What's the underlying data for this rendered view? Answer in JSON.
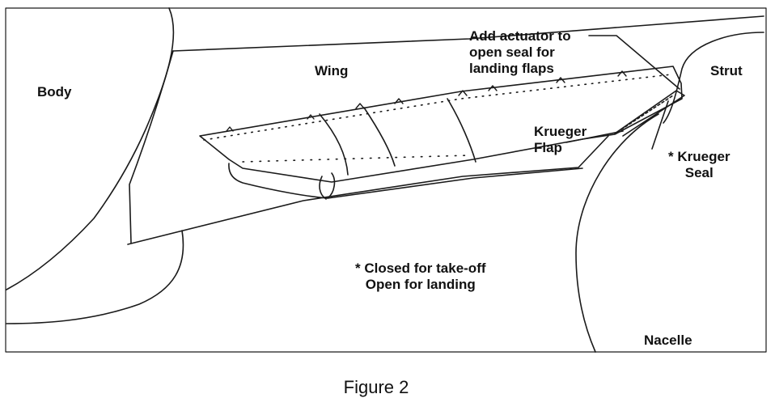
{
  "labels": {
    "body": "Body",
    "wing": "Wing",
    "strut": "Strut",
    "nacelle": "Nacelle",
    "actuator_note": [
      "Add actuator to",
      "open seal for",
      "landing flaps"
    ],
    "krueger_flap": [
      "Krueger",
      "Flap"
    ],
    "krueger_seal": [
      "* Krueger",
      "Seal"
    ],
    "seal_note": [
      "* Closed for take-off",
      "Open for landing"
    ]
  },
  "caption": "Figure 2",
  "colors": {
    "line": "#1a1a1a",
    "text": "#111111",
    "background": "#ffffff"
  }
}
